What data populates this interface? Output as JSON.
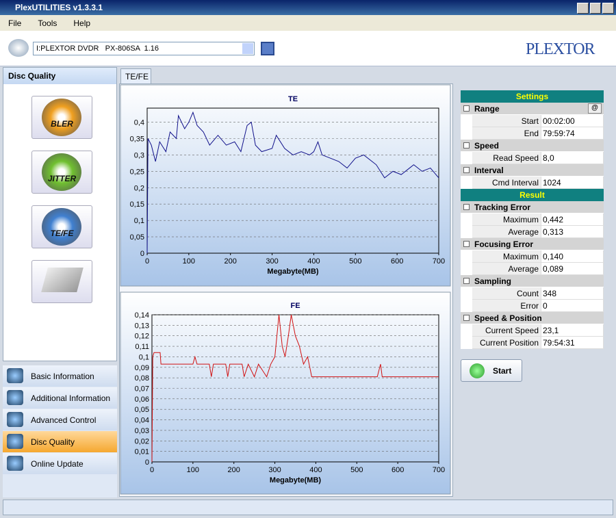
{
  "window": {
    "title": "PlexUTILITIES v1.3.3.1"
  },
  "menu": [
    "File",
    "Tools",
    "Help"
  ],
  "drive": "I:PLEXTOR DVDR   PX-806SA  1.16",
  "brand": "PLEXTOR",
  "sidebar": {
    "title": "Disc Quality",
    "buttons": [
      "BLER",
      "JITTER",
      "TE/FE"
    ],
    "nav": [
      "Basic Information",
      "Additional Information",
      "Advanced Control",
      "Disc Quality",
      "Online Update"
    ]
  },
  "tab": "TE/FE",
  "chart_data": [
    {
      "type": "line",
      "title": "TE",
      "x_label": "Megabyte(MB)",
      "color": "#10108a",
      "grid": true,
      "x": [
        0,
        2,
        10,
        20,
        30,
        45,
        55,
        70,
        75,
        90,
        100,
        110,
        120,
        135,
        150,
        170,
        190,
        210,
        225,
        240,
        250,
        260,
        275,
        300,
        310,
        330,
        350,
        370,
        390,
        400,
        410,
        420,
        440,
        460,
        480,
        500,
        520,
        540,
        550,
        570,
        590,
        610,
        630,
        640,
        660,
        680,
        700
      ],
      "values": [
        0,
        0.35,
        0.33,
        0.28,
        0.34,
        0.31,
        0.37,
        0.35,
        0.42,
        0.38,
        0.4,
        0.43,
        0.39,
        0.37,
        0.33,
        0.36,
        0.33,
        0.34,
        0.31,
        0.39,
        0.4,
        0.33,
        0.31,
        0.32,
        0.36,
        0.32,
        0.3,
        0.31,
        0.3,
        0.31,
        0.34,
        0.3,
        0.29,
        0.28,
        0.26,
        0.29,
        0.3,
        0.28,
        0.27,
        0.23,
        0.25,
        0.24,
        0.26,
        0.27,
        0.25,
        0.26,
        0.23
      ],
      "xlim": [
        0,
        700
      ],
      "xticks": [
        0,
        100,
        200,
        300,
        400,
        500,
        600,
        700
      ],
      "ylim": [
        0,
        0.443
      ],
      "yticks": [
        0,
        {
          "value": 0.05,
          "label": "0,05"
        },
        {
          "value": 0.1,
          "label": "0,1"
        },
        {
          "value": 0.15,
          "label": "0,15"
        },
        {
          "value": 0.2,
          "label": "0,2"
        },
        {
          "value": 0.25,
          "label": "0,25"
        },
        {
          "value": 0.3,
          "label": "0,3"
        },
        {
          "value": 0.35,
          "label": "0,35"
        },
        {
          "value": 0.4,
          "label": "0,4"
        }
      ]
    },
    {
      "type": "line",
      "title": "FE",
      "x_label": "Megabyte(MB)",
      "color": "#d01010",
      "grid": true,
      "x": [
        0,
        2,
        5,
        20,
        22,
        100,
        105,
        110,
        140,
        145,
        150,
        180,
        185,
        190,
        220,
        225,
        235,
        250,
        260,
        280,
        290,
        300,
        305,
        310,
        318,
        325,
        333,
        340,
        350,
        360,
        370,
        380,
        390,
        400,
        550,
        558,
        562,
        700
      ],
      "values": [
        0,
        0.1,
        0.104,
        0.104,
        0.093,
        0.093,
        0.1,
        0.093,
        0.093,
        0.081,
        0.093,
        0.093,
        0.081,
        0.093,
        0.093,
        0.081,
        0.093,
        0.081,
        0.093,
        0.081,
        0.093,
        0.1,
        0.12,
        0.14,
        0.11,
        0.1,
        0.12,
        0.14,
        0.12,
        0.11,
        0.093,
        0.1,
        0.081,
        0.081,
        0.081,
        0.093,
        0.081,
        0.081
      ],
      "xlim": [
        0,
        700
      ],
      "xticks": [
        0,
        100,
        200,
        300,
        400,
        500,
        600,
        700
      ],
      "ylim": [
        0,
        0.14
      ],
      "yticks": [
        0,
        {
          "value": 0.01,
          "label": "0,01"
        },
        {
          "value": 0.02,
          "label": "0,02"
        },
        {
          "value": 0.03,
          "label": "0,03"
        },
        {
          "value": 0.04,
          "label": "0,04"
        },
        {
          "value": 0.05,
          "label": "0,05"
        },
        {
          "value": 0.06,
          "label": "0,06"
        },
        {
          "value": 0.07,
          "label": "0,07"
        },
        {
          "value": 0.08,
          "label": "0,08"
        },
        {
          "value": 0.09,
          "label": "0,09"
        },
        {
          "value": 0.1,
          "label": "0,1"
        },
        {
          "value": 0.11,
          "label": "0,11"
        },
        {
          "value": 0.12,
          "label": "0,12"
        },
        {
          "value": 0.13,
          "label": "0,13"
        },
        {
          "value": 0.14,
          "label": "0,14"
        }
      ]
    }
  ],
  "panel": [
    {
      "header": "Settings",
      "groups": [
        {
          "title": "Range",
          "button": "@",
          "rows": [
            {
              "label": "Start",
              "value": "00:02:00"
            },
            {
              "label": "End",
              "value": "79:59:74"
            }
          ]
        },
        {
          "title": "Speed",
          "rows": [
            {
              "label": "Read Speed",
              "value": "8,0"
            }
          ]
        },
        {
          "title": "Interval",
          "rows": [
            {
              "label": "Cmd Interval",
              "value": "1024"
            }
          ]
        }
      ]
    },
    {
      "header": "Result",
      "groups": [
        {
          "title": "Tracking Error",
          "rows": [
            {
              "label": "Maximum",
              "value": "0,442"
            },
            {
              "label": "Average",
              "value": "0,313"
            }
          ]
        },
        {
          "title": "Focusing Error",
          "rows": [
            {
              "label": "Maximum",
              "value": "0,140"
            },
            {
              "label": "Average",
              "value": "0,089"
            }
          ]
        },
        {
          "title": "Sampling",
          "rows": [
            {
              "label": "Count",
              "value": "348"
            },
            {
              "label": "Error",
              "value": "0"
            }
          ]
        },
        {
          "title": "Speed & Position",
          "rows": [
            {
              "label": "Current Speed",
              "value": "23,1"
            },
            {
              "label": "Current Position",
              "value": "79:54:31"
            }
          ]
        }
      ]
    }
  ],
  "start_button": "Start"
}
